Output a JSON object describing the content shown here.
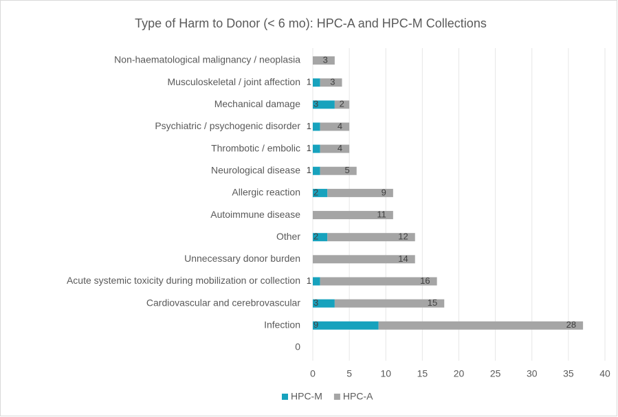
{
  "chart_data": {
    "type": "bar",
    "orientation": "horizontal",
    "stacked": true,
    "title": "Type of Harm to Donor (< 6 mo): HPC-A and HPC-M Collections",
    "categories": [
      "Non-haematological malignancy / neoplasia",
      "Musculoskeletal / joint affection",
      "Mechanical damage",
      "Psychiatric / psychogenic disorder",
      "Thrombotic / embolic",
      "Neurological disease",
      "Allergic reaction",
      "Autoimmune disease",
      "Other",
      "Unnecessary donor burden",
      "Acute systemic toxicity during mobilization or collection",
      "Cardiovascular and cerebrovascular",
      "Infection",
      "0"
    ],
    "series": [
      {
        "name": "HPC-M",
        "color": "#17a2bd",
        "values": [
          null,
          1,
          3,
          1,
          1,
          1,
          2,
          null,
          2,
          null,
          1,
          3,
          9,
          null
        ]
      },
      {
        "name": "HPC-A",
        "color": "#a5a5a5",
        "values": [
          3,
          3,
          2,
          4,
          4,
          5,
          9,
          11,
          12,
          14,
          16,
          15,
          28,
          null
        ]
      }
    ],
    "xlim": [
      0,
      40
    ],
    "xticks": [
      0,
      5,
      10,
      15,
      20,
      25,
      30,
      35,
      40
    ],
    "grid": true,
    "legend": "bottom"
  }
}
